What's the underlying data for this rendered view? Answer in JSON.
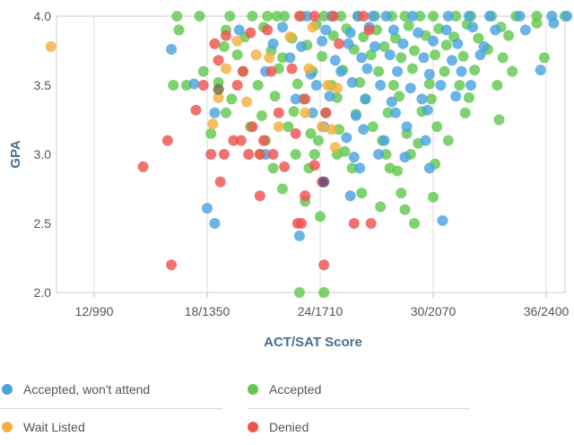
{
  "chart_data": {
    "type": "scatter",
    "xlabel": "ACT/SAT Score",
    "ylabel": "GPA",
    "xlim": [
      10,
      37
    ],
    "ylim": [
      2.0,
      4.0
    ],
    "x_ticks": [
      {
        "value": 12,
        "label": "12/990"
      },
      {
        "value": 18,
        "label": "18/1350"
      },
      {
        "value": 24,
        "label": "24/1710"
      },
      {
        "value": 30,
        "label": "30/2070"
      },
      {
        "value": 36,
        "label": "36/2400"
      }
    ],
    "y_ticks": [
      {
        "value": 2.0,
        "label": "2.0"
      },
      {
        "value": 2.5,
        "label": "2.5"
      },
      {
        "value": 3.0,
        "label": "3.0"
      },
      {
        "value": 3.5,
        "label": "3.5"
      },
      {
        "value": 4.0,
        "label": "4.0"
      }
    ],
    "grid": "vertical",
    "legend_position": "bottom",
    "series": [
      {
        "name": "Accepted",
        "color": "#63c850",
        "points": [
          [
            16.4,
            4.0
          ],
          [
            17.6,
            4.0
          ],
          [
            19.2,
            4.0
          ],
          [
            20.4,
            4.0
          ],
          [
            21.2,
            4.0
          ],
          [
            21.7,
            4.0
          ],
          [
            22.1,
            4.0
          ],
          [
            23.0,
            4.0
          ],
          [
            24.2,
            4.0
          ],
          [
            25.1,
            4.0
          ],
          [
            26.0,
            4.0
          ],
          [
            26.9,
            4.0
          ],
          [
            27.8,
            4.0
          ],
          [
            28.5,
            4.0
          ],
          [
            29.3,
            4.0
          ],
          [
            30.0,
            4.0
          ],
          [
            31.2,
            4.0
          ],
          [
            32.0,
            4.0
          ],
          [
            33.1,
            4.0
          ],
          [
            34.4,
            4.0
          ],
          [
            35.5,
            4.0
          ],
          [
            37.0,
            4.0
          ],
          [
            16.5,
            3.9
          ],
          [
            19.0,
            3.9
          ],
          [
            21.0,
            3.92
          ],
          [
            23.8,
            3.94
          ],
          [
            25.4,
            3.91
          ],
          [
            27.0,
            3.9
          ],
          [
            28.7,
            3.93
          ],
          [
            30.3,
            3.91
          ],
          [
            31.8,
            3.94
          ],
          [
            33.6,
            3.92
          ],
          [
            35.5,
            3.95
          ],
          [
            20.0,
            3.85
          ],
          [
            22.5,
            3.84
          ],
          [
            24.7,
            3.86
          ],
          [
            26.3,
            3.85
          ],
          [
            28.0,
            3.84
          ],
          [
            29.6,
            3.86
          ],
          [
            31.1,
            3.85
          ],
          [
            32.4,
            3.84
          ],
          [
            34.0,
            3.86
          ],
          [
            18.9,
            3.78
          ],
          [
            21.4,
            3.75
          ],
          [
            23.3,
            3.79
          ],
          [
            25.8,
            3.76
          ],
          [
            27.4,
            3.78
          ],
          [
            29.0,
            3.75
          ],
          [
            30.7,
            3.79
          ],
          [
            32.9,
            3.76
          ],
          [
            35.9,
            3.7
          ],
          [
            19.6,
            3.72
          ],
          [
            22.0,
            3.7
          ],
          [
            24.1,
            3.71
          ],
          [
            26.7,
            3.72
          ],
          [
            28.3,
            3.7
          ],
          [
            30.1,
            3.72
          ],
          [
            31.6,
            3.71
          ],
          [
            33.7,
            3.7
          ],
          [
            17.8,
            3.6
          ],
          [
            19.9,
            3.6
          ],
          [
            21.8,
            3.62
          ],
          [
            23.6,
            3.6
          ],
          [
            25.2,
            3.61
          ],
          [
            27.1,
            3.6
          ],
          [
            28.9,
            3.62
          ],
          [
            30.6,
            3.6
          ],
          [
            32.2,
            3.61
          ],
          [
            34.2,
            3.6
          ],
          [
            16.2,
            3.5
          ],
          [
            16.9,
            3.5
          ],
          [
            18.6,
            3.52
          ],
          [
            20.7,
            3.5
          ],
          [
            22.8,
            3.51
          ],
          [
            24.6,
            3.5
          ],
          [
            26.1,
            3.52
          ],
          [
            27.9,
            3.5
          ],
          [
            29.8,
            3.51
          ],
          [
            31.4,
            3.5
          ],
          [
            33.4,
            3.5
          ],
          [
            19.3,
            3.4
          ],
          [
            21.6,
            3.42
          ],
          [
            23.1,
            3.4
          ],
          [
            24.9,
            3.41
          ],
          [
            26.4,
            3.4
          ],
          [
            28.2,
            3.42
          ],
          [
            29.9,
            3.4
          ],
          [
            31.9,
            3.41
          ],
          [
            19.0,
            3.3
          ],
          [
            20.9,
            3.28
          ],
          [
            22.6,
            3.31
          ],
          [
            24.3,
            3.3
          ],
          [
            25.9,
            3.29
          ],
          [
            27.6,
            3.3
          ],
          [
            29.4,
            3.31
          ],
          [
            31.7,
            3.3
          ],
          [
            33.5,
            3.25
          ],
          [
            18.2,
            3.15
          ],
          [
            20.3,
            3.2
          ],
          [
            22.3,
            3.2
          ],
          [
            23.5,
            3.15
          ],
          [
            25.0,
            3.18
          ],
          [
            26.8,
            3.2
          ],
          [
            28.6,
            3.15
          ],
          [
            30.2,
            3.2
          ],
          [
            21.1,
            3.1
          ],
          [
            23.9,
            3.1
          ],
          [
            27.3,
            3.1
          ],
          [
            29.2,
            3.08
          ],
          [
            30.8,
            3.1
          ],
          [
            20.8,
            3.0
          ],
          [
            22.7,
            3.0
          ],
          [
            23.7,
            3.0
          ],
          [
            24.9,
            3.0
          ],
          [
            25.3,
            3.02
          ],
          [
            27.5,
            3.0
          ],
          [
            28.8,
            3.0
          ],
          [
            21.5,
            2.9
          ],
          [
            23.4,
            2.9
          ],
          [
            25.7,
            2.9
          ],
          [
            27.7,
            2.9
          ],
          [
            28.1,
            2.88
          ],
          [
            30.1,
            2.93
          ],
          [
            22.0,
            2.75
          ],
          [
            26.2,
            2.72
          ],
          [
            28.3,
            2.72
          ],
          [
            30.0,
            2.69
          ],
          [
            23.2,
            2.66
          ],
          [
            24.0,
            2.55
          ],
          [
            27.2,
            2.62
          ],
          [
            28.5,
            2.6
          ],
          [
            29.0,
            2.5
          ],
          [
            22.9,
            2.0
          ],
          [
            24.2,
            2.0
          ]
        ]
      },
      {
        "name": "Accepted, won't attend",
        "color": "#4aa3df",
        "points": [
          [
            23.3,
            4.0
          ],
          [
            24.6,
            4.0
          ],
          [
            26.0,
            4.0
          ],
          [
            26.8,
            4.0
          ],
          [
            27.5,
            4.0
          ],
          [
            28.9,
            4.0
          ],
          [
            30.8,
            4.0
          ],
          [
            31.9,
            4.0
          ],
          [
            33.0,
            4.0
          ],
          [
            34.6,
            4.0
          ],
          [
            36.3,
            4.0
          ],
          [
            37.1,
            4.0
          ],
          [
            19.7,
            3.9
          ],
          [
            22.0,
            3.92
          ],
          [
            24.3,
            3.9
          ],
          [
            25.6,
            3.88
          ],
          [
            26.6,
            3.92
          ],
          [
            27.9,
            3.9
          ],
          [
            29.2,
            3.88
          ],
          [
            30.7,
            3.9
          ],
          [
            32.1,
            3.92
          ],
          [
            33.3,
            3.9
          ],
          [
            34.9,
            3.9
          ],
          [
            36.4,
            3.95
          ],
          [
            21.5,
            3.8
          ],
          [
            23.0,
            3.78
          ],
          [
            24.1,
            3.82
          ],
          [
            25.5,
            3.8
          ],
          [
            26.9,
            3.78
          ],
          [
            28.4,
            3.8
          ],
          [
            30.0,
            3.82
          ],
          [
            31.3,
            3.8
          ],
          [
            32.7,
            3.78
          ],
          [
            16.1,
            3.76
          ],
          [
            22.4,
            3.7
          ],
          [
            24.8,
            3.68
          ],
          [
            26.2,
            3.7
          ],
          [
            27.7,
            3.72
          ],
          [
            29.5,
            3.7
          ],
          [
            31.0,
            3.68
          ],
          [
            32.5,
            3.72
          ],
          [
            21.1,
            3.6
          ],
          [
            23.5,
            3.58
          ],
          [
            25.1,
            3.6
          ],
          [
            26.5,
            3.62
          ],
          [
            28.1,
            3.6
          ],
          [
            29.8,
            3.58
          ],
          [
            31.5,
            3.6
          ],
          [
            35.7,
            3.61
          ],
          [
            17.3,
            3.51
          ],
          [
            23.8,
            3.5
          ],
          [
            25.7,
            3.52
          ],
          [
            27.2,
            3.5
          ],
          [
            28.8,
            3.48
          ],
          [
            30.4,
            3.5
          ],
          [
            32.0,
            3.5
          ],
          [
            22.7,
            3.4
          ],
          [
            24.5,
            3.42
          ],
          [
            26.4,
            3.4
          ],
          [
            27.8,
            3.38
          ],
          [
            29.4,
            3.4
          ],
          [
            31.2,
            3.42
          ],
          [
            18.4,
            3.3
          ],
          [
            23.6,
            3.3
          ],
          [
            25.9,
            3.28
          ],
          [
            28.0,
            3.3
          ],
          [
            29.7,
            3.32
          ],
          [
            24.2,
            3.2
          ],
          [
            26.3,
            3.18
          ],
          [
            28.6,
            3.2
          ],
          [
            25.4,
            3.12
          ],
          [
            27.4,
            3.1
          ],
          [
            29.6,
            3.1
          ],
          [
            21.1,
            3.0
          ],
          [
            25.8,
            2.98
          ],
          [
            27.1,
            3.0
          ],
          [
            28.5,
            2.98
          ],
          [
            26.1,
            2.9
          ],
          [
            29.8,
            2.9
          ],
          [
            25.6,
            2.7
          ],
          [
            18.0,
            2.61
          ],
          [
            18.4,
            2.5
          ],
          [
            22.9,
            2.41
          ],
          [
            30.5,
            2.52
          ]
        ]
      },
      {
        "name": "Wait Listed",
        "color": "#f3b13f",
        "points": [
          [
            9.7,
            3.78
          ],
          [
            19.0,
            3.62
          ],
          [
            19.6,
            3.82
          ],
          [
            20.6,
            3.72
          ],
          [
            21.3,
            3.7
          ],
          [
            22.4,
            3.85
          ],
          [
            23.6,
            3.92
          ],
          [
            24.4,
            3.5
          ],
          [
            24.9,
            3.48
          ],
          [
            18.6,
            3.41
          ],
          [
            18.3,
            3.22
          ],
          [
            23.4,
            3.62
          ],
          [
            23.2,
            3.3
          ],
          [
            24.1,
            3.2
          ],
          [
            24.6,
            3.18
          ],
          [
            24.8,
            3.05
          ],
          [
            20.1,
            3.38
          ],
          [
            21.8,
            3.2
          ]
        ]
      },
      {
        "name": "Denied",
        "color": "#ef5350",
        "points": [
          [
            19.0,
            3.86
          ],
          [
            18.4,
            3.8
          ],
          [
            20.3,
            3.88
          ],
          [
            21.2,
            3.9
          ],
          [
            22.9,
            4.0
          ],
          [
            23.7,
            4.0
          ],
          [
            24.7,
            4.0
          ],
          [
            26.3,
            4.0
          ],
          [
            18.6,
            3.68
          ],
          [
            19.9,
            3.6
          ],
          [
            21.4,
            3.6
          ],
          [
            22.5,
            3.62
          ],
          [
            25.0,
            3.8
          ],
          [
            26.6,
            3.9
          ],
          [
            17.8,
            3.5
          ],
          [
            19.6,
            3.5
          ],
          [
            23.2,
            3.4
          ],
          [
            21.8,
            3.3
          ],
          [
            17.4,
            3.32
          ],
          [
            15.9,
            3.1
          ],
          [
            18.2,
            3.0
          ],
          [
            18.9,
            3.0
          ],
          [
            19.4,
            3.1
          ],
          [
            19.8,
            3.1
          ],
          [
            20.4,
            3.2
          ],
          [
            21.0,
            3.1
          ],
          [
            21.5,
            3.0
          ],
          [
            22.7,
            3.15
          ],
          [
            24.3,
            3.3
          ],
          [
            20.2,
            3.0
          ],
          [
            20.8,
            3.0
          ],
          [
            14.6,
            2.91
          ],
          [
            22.1,
            2.91
          ],
          [
            23.7,
            2.92
          ],
          [
            24.1,
            2.8
          ],
          [
            18.7,
            2.8
          ],
          [
            20.8,
            2.7
          ],
          [
            23.2,
            2.7
          ],
          [
            22.8,
            2.5
          ],
          [
            23.0,
            2.5
          ],
          [
            25.8,
            2.5
          ],
          [
            26.7,
            2.5
          ],
          [
            16.1,
            2.2
          ],
          [
            24.2,
            2.2
          ]
        ]
      },
      {
        "name": "",
        "color": "#6b6b3a",
        "points": [
          [
            18.6,
            3.47
          ]
        ]
      },
      {
        "name": "",
        "color": "#5b4a7a",
        "points": [
          [
            24.2,
            2.8
          ]
        ]
      }
    ]
  },
  "legend": {
    "items": [
      {
        "label": "Accepted, won't attend",
        "color": "#4aa3df"
      },
      {
        "label": "Accepted",
        "color": "#63c850"
      },
      {
        "label": "Wait Listed",
        "color": "#f3b13f"
      },
      {
        "label": "Denied",
        "color": "#ef5350"
      }
    ]
  }
}
